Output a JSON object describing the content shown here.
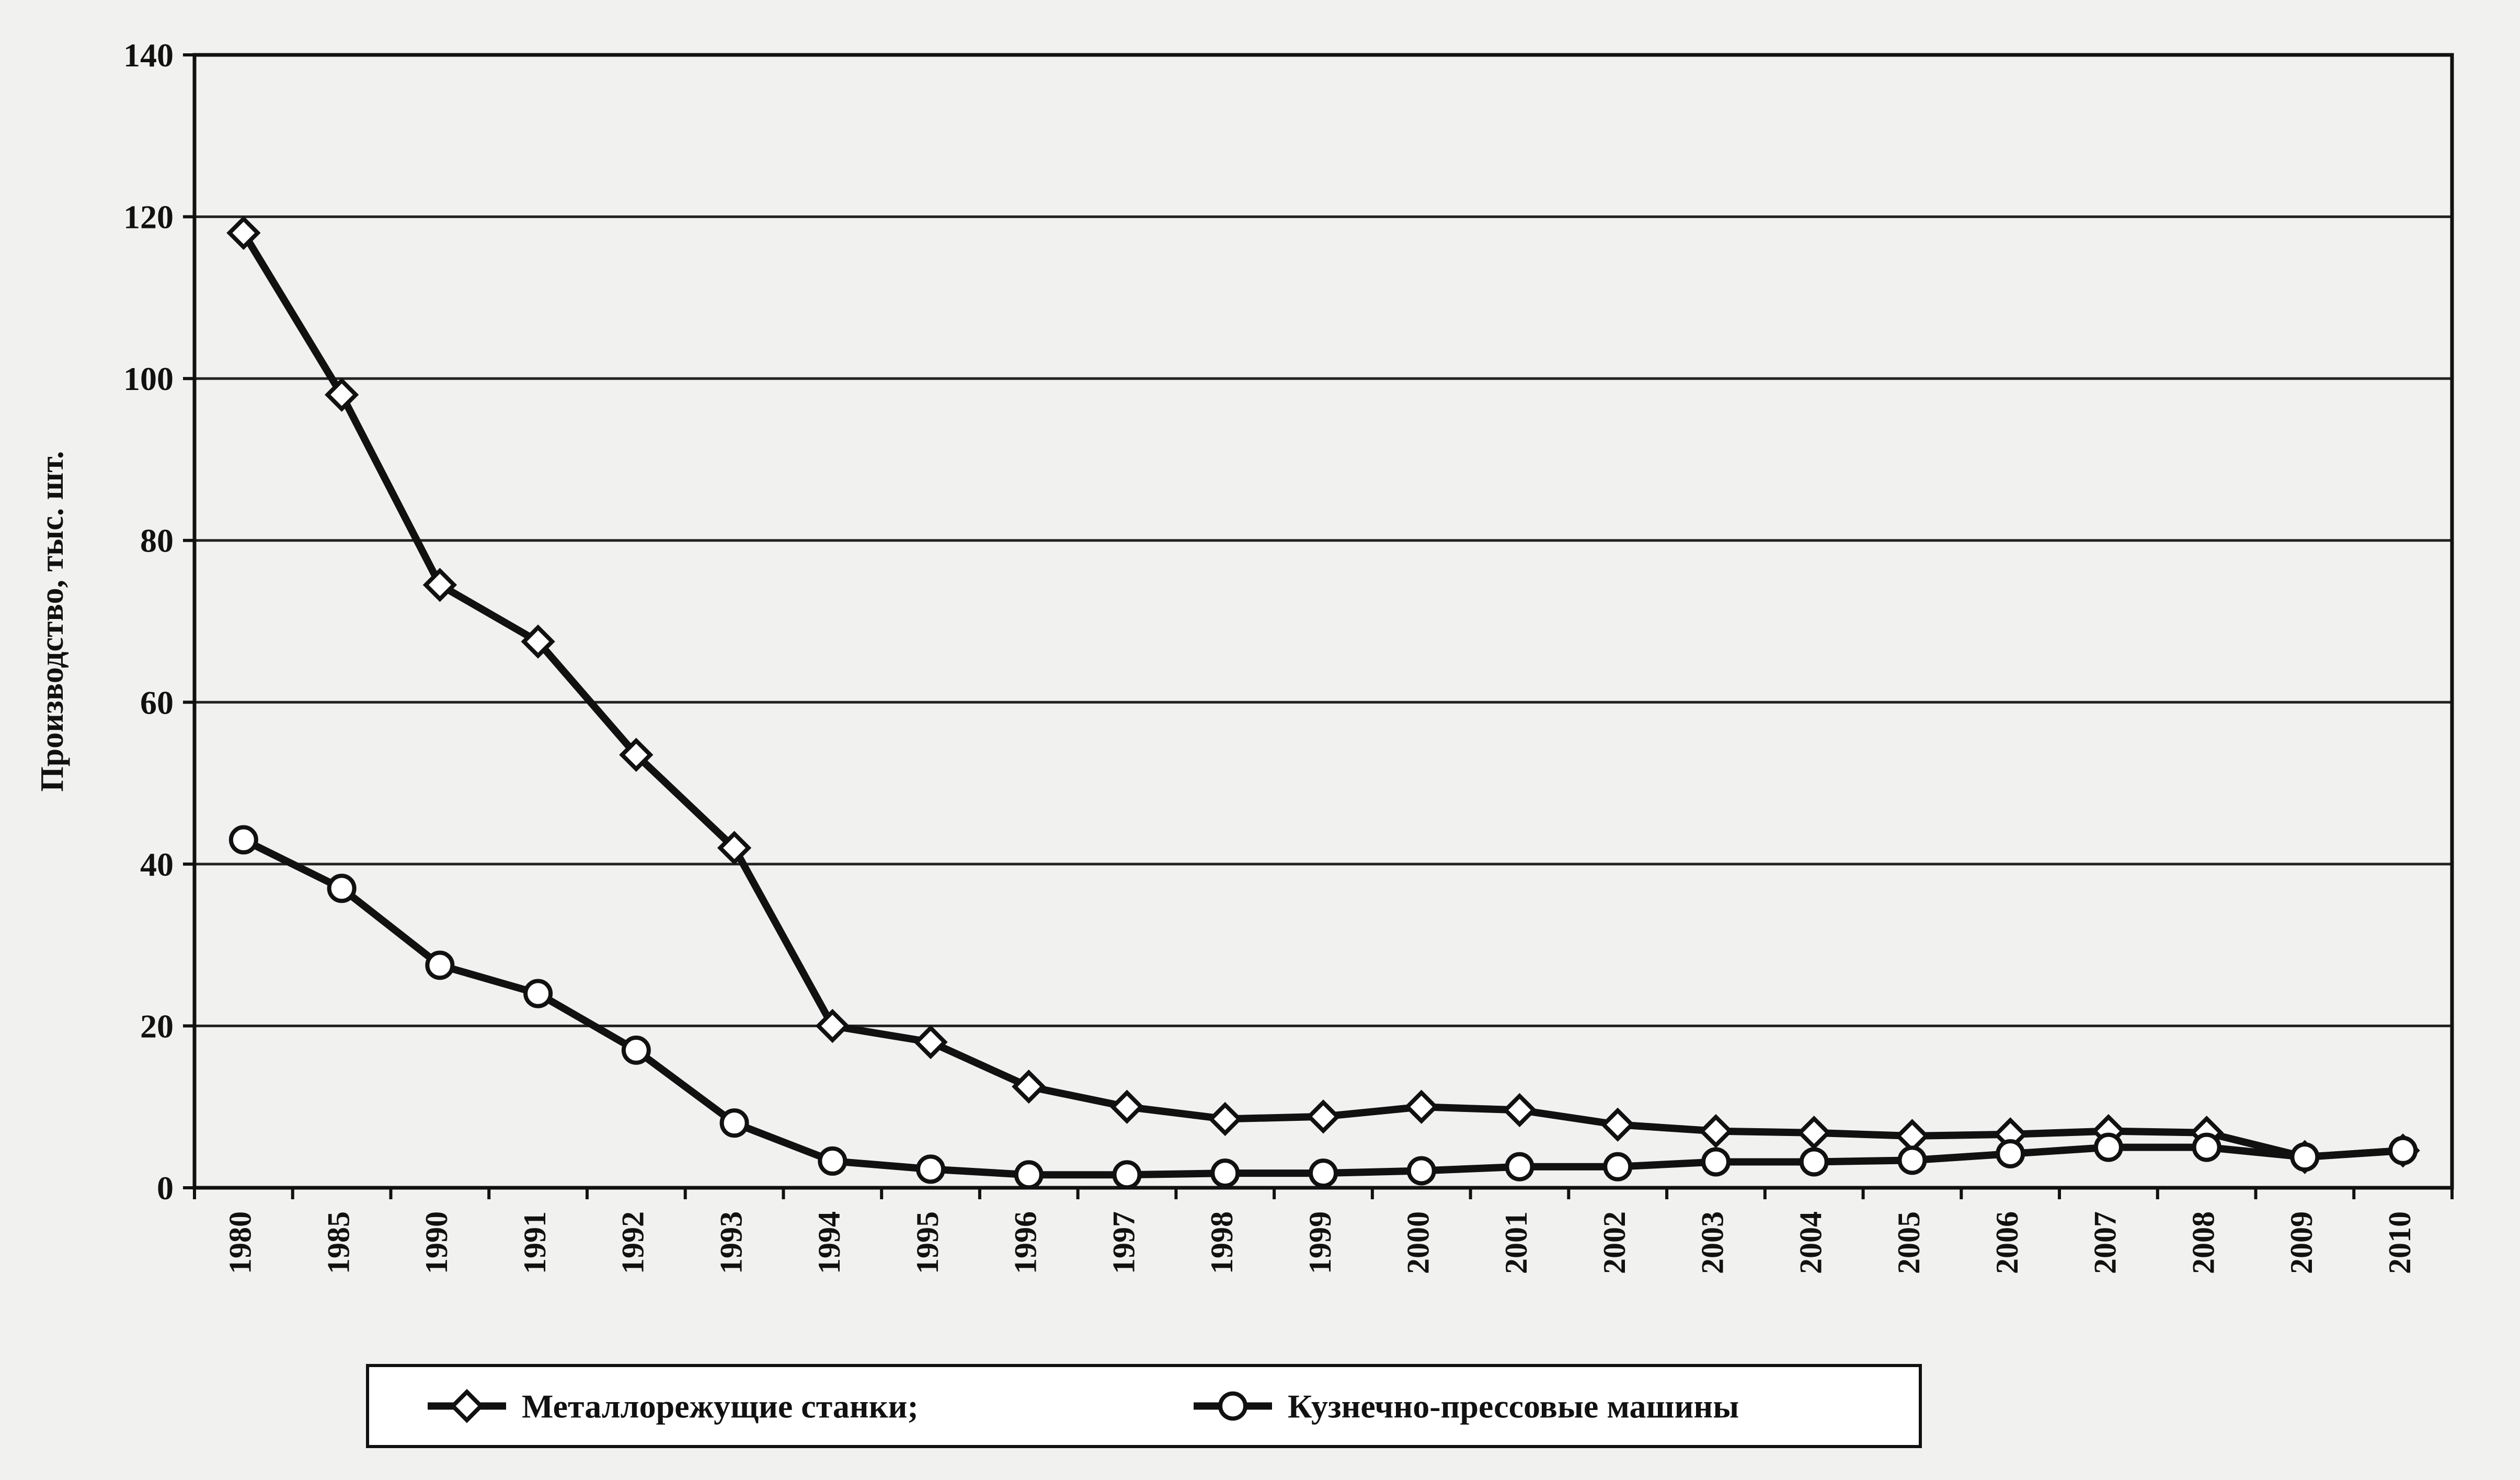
{
  "chart_data": {
    "type": "line",
    "categories": [
      "1980",
      "1985",
      "1990",
      "1991",
      "1992",
      "1993",
      "1994",
      "1995",
      "1996",
      "1997",
      "1998",
      "1999",
      "2000",
      "2001",
      "2002",
      "2003",
      "2004",
      "2005",
      "2006",
      "2007",
      "2008",
      "2009",
      "2010"
    ],
    "series": [
      {
        "name": "Металлорежущие станки;",
        "marker": "diamond",
        "values": [
          118,
          98,
          74.5,
          67.5,
          53.5,
          42,
          20,
          18,
          12.5,
          10,
          8.5,
          8.8,
          10,
          9.6,
          7.8,
          7,
          6.8,
          6.4,
          6.6,
          7,
          6.8,
          3.8,
          4.6
        ]
      },
      {
        "name": "Кузнечно-прессовые машины",
        "marker": "circle",
        "values": [
          43,
          37,
          27.5,
          24,
          17,
          8,
          3.3,
          2.3,
          1.6,
          1.6,
          1.8,
          1.8,
          2.1,
          2.6,
          2.6,
          3.2,
          3.2,
          3.4,
          4.2,
          5,
          5,
          3.8,
          4.6
        ]
      }
    ],
    "ylabel": "Производство, тыс. шт.",
    "xlabel": "",
    "ylim": [
      0,
      140
    ],
    "yticks": [
      "0",
      "20",
      "40",
      "60",
      "80",
      "100",
      "120",
      "140"
    ],
    "grid": true,
    "legend_position": "bottom"
  }
}
